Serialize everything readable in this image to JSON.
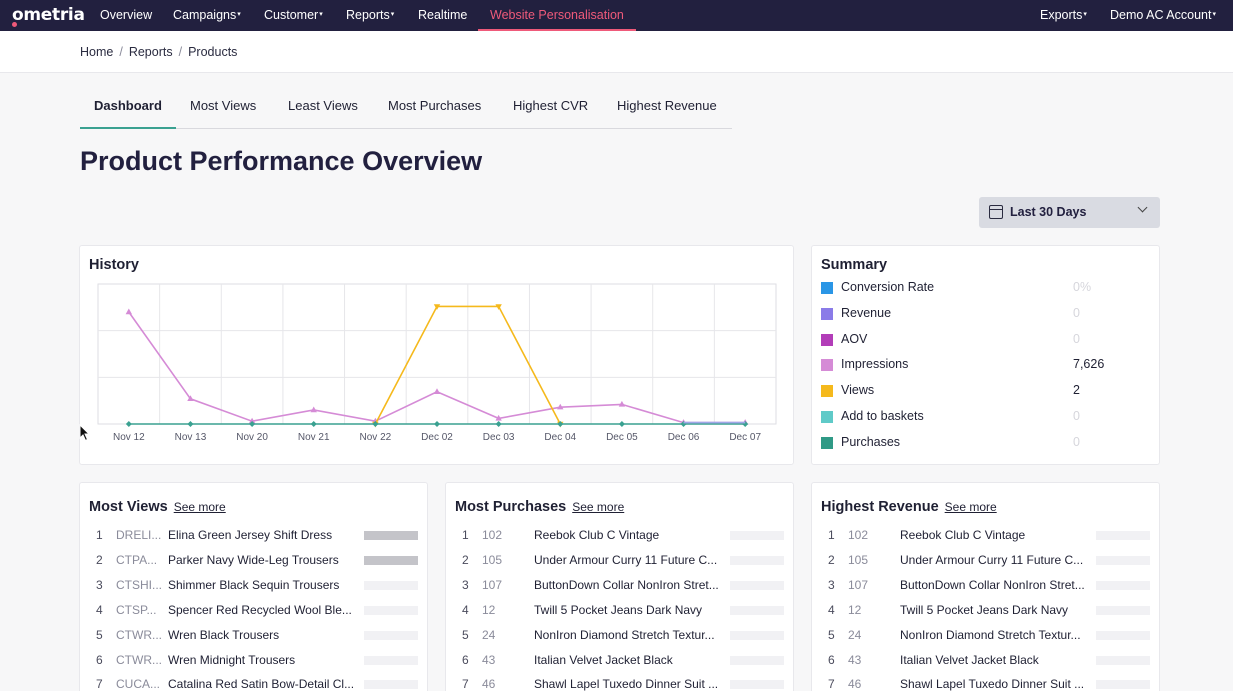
{
  "nav": {
    "logo": "ometria",
    "items": [
      {
        "label": "Overview",
        "caret": ""
      },
      {
        "label": "Campaigns",
        "caret": "▾"
      },
      {
        "label": "Customer",
        "caret": "▾"
      },
      {
        "label": "Reports",
        "caret": "▾"
      },
      {
        "label": "Realtime",
        "caret": ""
      },
      {
        "label": "Website Personalisation",
        "caret": ""
      }
    ],
    "exports": "Exports",
    "account": "Demo AC Account",
    "caret": "▾"
  },
  "breadcrumb": {
    "items": [
      "Home",
      "Reports",
      "Products"
    ],
    "sep": "/"
  },
  "tabs": [
    "Dashboard",
    "Most Views",
    "Least Views",
    "Most Purchases",
    "Highest CVR",
    "Highest Revenue"
  ],
  "page_title": "Product Performance Overview",
  "date_range": "Last 30 Days",
  "history": {
    "title": "History"
  },
  "chart_data": {
    "type": "line",
    "x": [
      "Nov 12",
      "Nov 13",
      "Nov 20",
      "Nov 21",
      "Nov 22",
      "Dec 02",
      "Dec 03",
      "Dec 04",
      "Dec 05",
      "Dec 06",
      "Dec 07"
    ],
    "ylim": [
      0,
      1
    ],
    "series": [
      {
        "key": "impressions",
        "color": "#d58bd6",
        "marker": "triangle-up",
        "values": [
          0.8,
          0.18,
          0.02,
          0.1,
          0.02,
          0.23,
          0.04,
          0.12,
          0.14,
          0.01,
          0.01
        ]
      },
      {
        "key": "views",
        "color": "#f5b91c",
        "marker": "triangle-down",
        "values": [
          null,
          null,
          null,
          null,
          0,
          0.84,
          0.84,
          0,
          null,
          null,
          null
        ]
      },
      {
        "key": "purchases",
        "color": "#3aa191",
        "marker": "diamond",
        "values": [
          0,
          0,
          0,
          0,
          0,
          0,
          0,
          0,
          0,
          0,
          0
        ]
      },
      {
        "key": "aov",
        "color": "#a1a7e8",
        "marker": "none",
        "values": [
          null,
          null,
          null,
          null,
          null,
          null,
          null,
          null,
          null,
          0.01,
          0.01
        ]
      }
    ],
    "grid": true,
    "legend": "none"
  },
  "summary": {
    "title": "Summary",
    "rows": [
      {
        "label": "Conversion Rate",
        "value": "0%",
        "color": "#2a96e6",
        "muted": true
      },
      {
        "label": "Revenue",
        "value": "0",
        "color": "#8a7be8",
        "muted": true
      },
      {
        "label": "AOV",
        "value": "0",
        "color": "#b23db8",
        "muted": true
      },
      {
        "label": "Impressions",
        "value": "7,626",
        "color": "#d58bd6",
        "muted": false
      },
      {
        "label": "Views",
        "value": "2",
        "color": "#f5b91c",
        "muted": false
      },
      {
        "label": "Add to baskets",
        "value": "0",
        "color": "#5fcac8",
        "muted": true
      },
      {
        "label": "Purchases",
        "value": "0",
        "color": "#2f9a86",
        "muted": true
      }
    ]
  },
  "lists": [
    {
      "title": "Most Views",
      "see_more": "See more",
      "rows": [
        {
          "rank": "1",
          "code": "DRELI...",
          "name": "Elina Green Jersey Shift Dress",
          "fraction": 1
        },
        {
          "rank": "2",
          "code": "CTPA...",
          "name": "Parker Navy Wide-Leg Trousers",
          "fraction": 1
        },
        {
          "rank": "3",
          "code": "CTSHI...",
          "name": "Shimmer Black Sequin Trousers",
          "fraction": 0
        },
        {
          "rank": "4",
          "code": "CTSP...",
          "name": "Spencer Red Recycled Wool Ble...",
          "fraction": 0
        },
        {
          "rank": "5",
          "code": "CTWR...",
          "name": "Wren Black Trousers",
          "fraction": 0
        },
        {
          "rank": "6",
          "code": "CTWR...",
          "name": "Wren Midnight Trousers",
          "fraction": 0
        },
        {
          "rank": "7",
          "code": "CUCA...",
          "name": "Catalina Red Satin Bow-Detail Cl...",
          "fraction": 0
        }
      ]
    },
    {
      "title": "Most Purchases",
      "see_more": "See more",
      "rows": [
        {
          "rank": "1",
          "code": "102",
          "name": "Reebok Club C Vintage",
          "fraction": 0
        },
        {
          "rank": "2",
          "code": "105",
          "name": "Under Armour Curry 11 Future C...",
          "fraction": 0
        },
        {
          "rank": "3",
          "code": "107",
          "name": "ButtonDown Collar NonIron Stret...",
          "fraction": 0
        },
        {
          "rank": "4",
          "code": "12",
          "name": "Twill 5 Pocket Jeans Dark Navy",
          "fraction": 0
        },
        {
          "rank": "5",
          "code": "24",
          "name": "NonIron Diamond Stretch Textur...",
          "fraction": 0
        },
        {
          "rank": "6",
          "code": "43",
          "name": "Italian Velvet Jacket Black",
          "fraction": 0
        },
        {
          "rank": "7",
          "code": "46",
          "name": "Shawl Lapel Tuxedo Dinner Suit ...",
          "fraction": 0
        }
      ]
    },
    {
      "title": "Highest Revenue",
      "see_more": "See more",
      "rows": [
        {
          "rank": "1",
          "code": "102",
          "name": "Reebok Club C Vintage",
          "fraction": 0
        },
        {
          "rank": "2",
          "code": "105",
          "name": "Under Armour Curry 11 Future C...",
          "fraction": 0
        },
        {
          "rank": "3",
          "code": "107",
          "name": "ButtonDown Collar NonIron Stret...",
          "fraction": 0
        },
        {
          "rank": "4",
          "code": "12",
          "name": "Twill 5 Pocket Jeans Dark Navy",
          "fraction": 0
        },
        {
          "rank": "5",
          "code": "24",
          "name": "NonIron Diamond Stretch Textur...",
          "fraction": 0
        },
        {
          "rank": "6",
          "code": "43",
          "name": "Italian Velvet Jacket Black",
          "fraction": 0
        },
        {
          "rank": "7",
          "code": "46",
          "name": "Shawl Lapel Tuxedo Dinner Suit ...",
          "fraction": 0
        }
      ]
    }
  ]
}
